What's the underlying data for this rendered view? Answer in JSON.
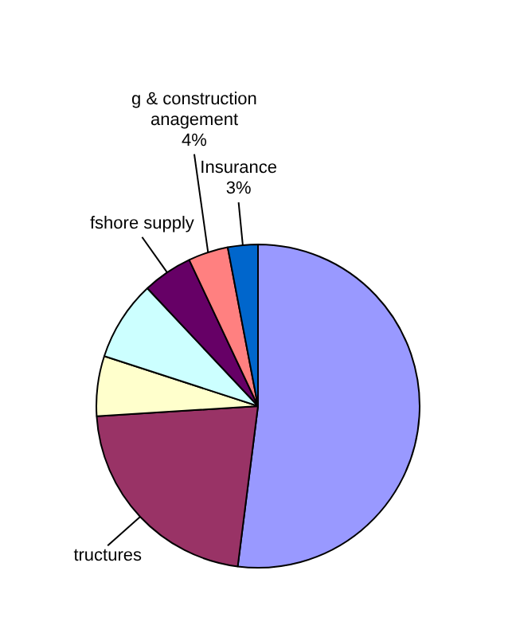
{
  "chart_data": {
    "type": "pie",
    "categories": [
      null,
      "tructures",
      null,
      null,
      "fshore supply",
      "g & construction anagement",
      "Insurance"
    ],
    "values": [
      52,
      22,
      6,
      8,
      5,
      4,
      3
    ],
    "colors": [
      "#9999ff",
      "#993366",
      "#ffffcc",
      "#ccffff",
      "#660066",
      "#ff8080",
      "#0066cc"
    ],
    "value_labels": [
      null,
      null,
      null,
      null,
      null,
      "4%",
      "3%"
    ],
    "legend": false
  }
}
